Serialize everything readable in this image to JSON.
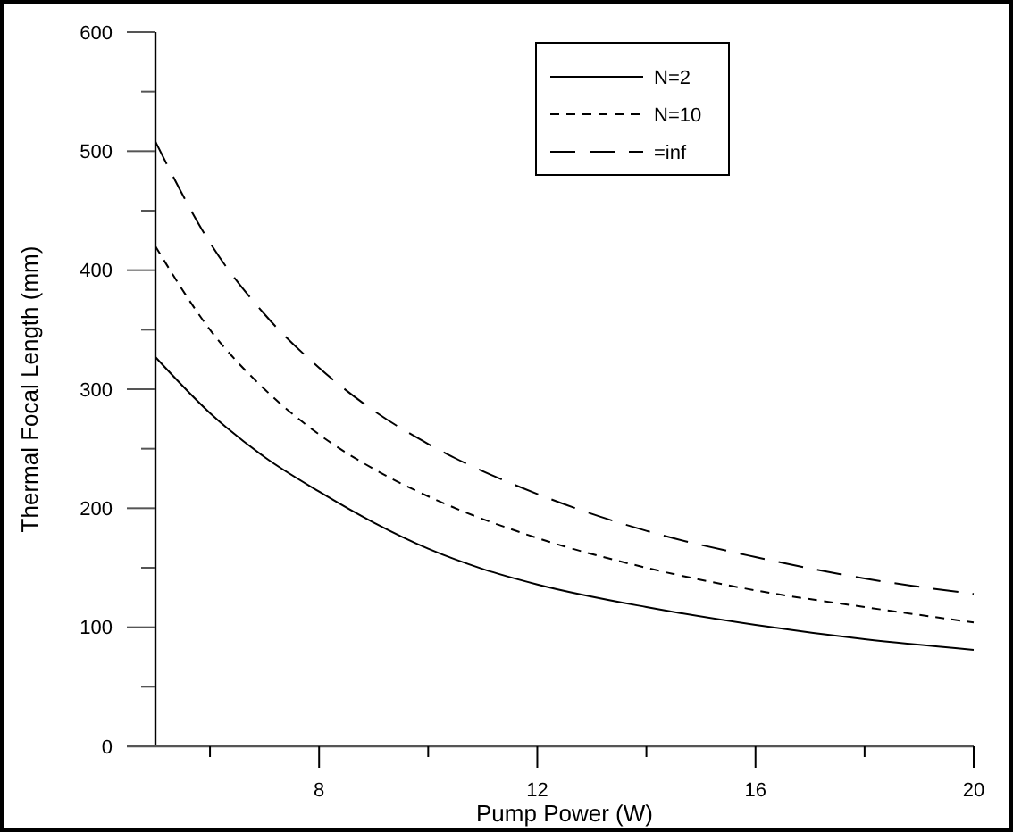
{
  "chart_data": {
    "type": "line",
    "xlabel": "Pump Power (W)",
    "ylabel": "Thermal Focal Length (mm)",
    "xlim": [
      5,
      20
    ],
    "xticks": [
      {
        "value": 6,
        "label": null
      },
      8,
      {
        "value": 10,
        "label": null
      },
      12,
      {
        "value": 14,
        "label": null
      },
      16,
      {
        "value": 18,
        "label": null
      },
      20
    ],
    "ylim": [
      0,
      600
    ],
    "yticks": [
      0,
      {
        "value": 50,
        "label": null
      },
      100,
      {
        "value": 150,
        "label": null
      },
      200,
      {
        "value": 250,
        "label": null
      },
      300,
      {
        "value": 350,
        "label": null
      },
      400,
      {
        "value": 450,
        "label": null
      },
      500,
      {
        "value": 550,
        "label": null
      },
      600
    ],
    "grid": false,
    "legend": "top right",
    "series": [
      {
        "name": "N=2",
        "color": "#000000",
        "line_style": "solid",
        "x": [
          5,
          6,
          7,
          8,
          9,
          10,
          11,
          12,
          14,
          16,
          18,
          20
        ],
        "values": [
          327,
          280,
          243,
          214,
          188,
          166,
          149,
          136,
          117,
          102,
          90,
          81
        ]
      },
      {
        "name": "N=10",
        "color": "#000000",
        "line_style": "dashed",
        "x": [
          5,
          6,
          7,
          8,
          9,
          10,
          12,
          14,
          16,
          18,
          20
        ],
        "values": [
          420,
          350,
          300,
          262,
          233,
          210,
          175,
          150,
          131,
          117,
          104
        ]
      },
      {
        "name": "=inf",
        "color": "#000000",
        "line_style": "dashed",
        "x": [
          5,
          6,
          7,
          8,
          9,
          10,
          12,
          14,
          16,
          18,
          20
        ],
        "values": [
          508,
          423,
          363,
          318,
          282,
          254,
          212,
          181,
          159,
          141,
          128
        ]
      }
    ]
  }
}
